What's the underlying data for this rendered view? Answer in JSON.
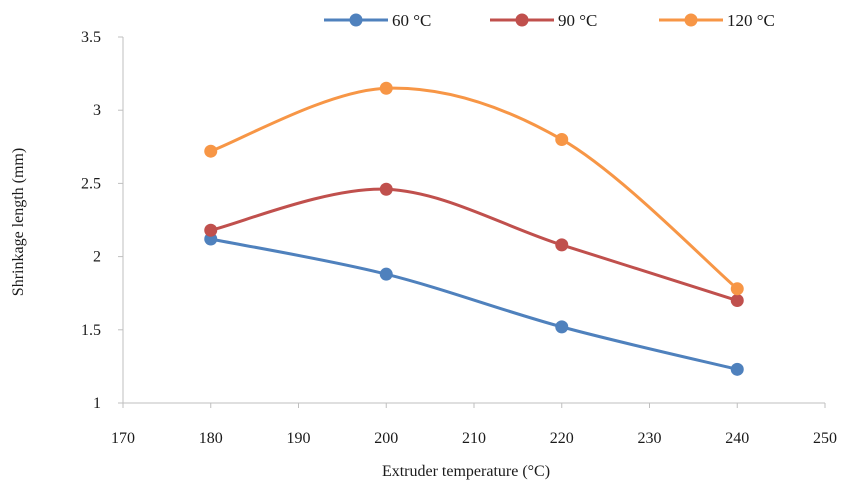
{
  "chart_data": {
    "type": "line",
    "title": "",
    "xlabel": "Extruder temperature (°C)",
    "ylabel": "Shrinkage length (mm)",
    "xlim": [
      170,
      250
    ],
    "ylim": [
      1,
      3.5
    ],
    "xticks": [
      "170",
      "180",
      "190",
      "200",
      "210",
      "220",
      "230",
      "240",
      "250"
    ],
    "yticks": [
      "1",
      "1.5",
      "2",
      "2.5",
      "3",
      "3.5"
    ],
    "x": [
      180,
      200,
      220,
      240
    ],
    "smooth": true,
    "grid": false,
    "legend": "top",
    "series": [
      {
        "name": "60 °C",
        "color": "#4f81bd",
        "values": [
          2.12,
          1.88,
          1.52,
          1.23
        ]
      },
      {
        "name": "90 °C",
        "color": "#c0504d",
        "values": [
          2.18,
          2.46,
          2.08,
          1.7
        ]
      },
      {
        "name": "120 °C",
        "color": "#f79646",
        "values": [
          2.72,
          3.15,
          2.8,
          1.78
        ]
      }
    ]
  }
}
